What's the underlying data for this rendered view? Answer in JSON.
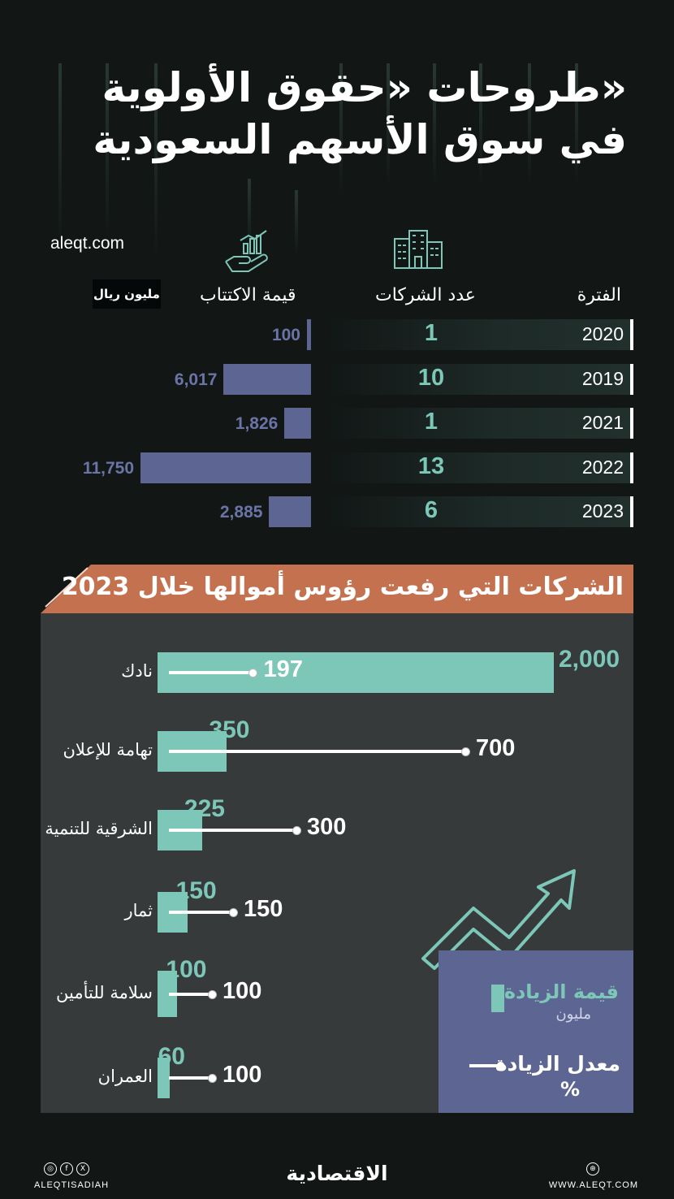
{
  "title": {
    "line1": "طروحات «حقوق الأولوية»",
    "line2": "في سوق الأسهم السعودية"
  },
  "site": "aleqt.com",
  "headers": {
    "period": "الفترة",
    "companies": "عدد الشركات",
    "value": "قيمة الاكتتاب",
    "unit": "مليون ريال"
  },
  "banner_title": "الشركات التي رفعت رؤوس أموالها خلال 2023",
  "legend": {
    "increase_value": "قيمة الزيادة",
    "increase_value_unit": "مليون",
    "increase_rate": "معدل الزيادة",
    "increase_rate_unit": "%"
  },
  "footer": {
    "handle": "ALEQTISADIAH",
    "brand": "الاقتصادية",
    "website": "WWW.ALEQT.COM"
  },
  "icons": [
    "hand-growth-icon",
    "buildings-icon",
    "trend-arrow-icon",
    "instagram-icon",
    "facebook-icon",
    "x-icon",
    "globe-icon"
  ],
  "colors": {
    "background": "#121716",
    "teal": "#7dc7b9",
    "purple": "#5d6592",
    "orange": "#c4714f",
    "panel": "#373a3b"
  },
  "chart_data": [
    {
      "type": "table",
      "columns": [
        "الفترة",
        "عدد الشركات",
        "قيمة الاكتتاب"
      ],
      "unit": "مليون ريال",
      "rows": [
        {
          "year": "2020",
          "companies": "1",
          "value": 100,
          "value_label": "100"
        },
        {
          "year": "2019",
          "companies": "10",
          "value": 6017,
          "value_label": "6,017"
        },
        {
          "year": "2021",
          "companies": "1",
          "value": 1826,
          "value_label": "1,826"
        },
        {
          "year": "2022",
          "companies": "13",
          "value": 11750,
          "value_label": "11,750"
        },
        {
          "year": "2023",
          "companies": "6",
          "value": 2885,
          "value_label": "2,885"
        }
      ]
    },
    {
      "type": "bar",
      "title": "الشركات التي رفعت رؤوس أموالها خلال 2023",
      "categories": [
        "نادك",
        "تهامة للإعلان",
        "الشرقية للتنمية",
        "ثمار",
        "سلامة للتأمين",
        "العمران"
      ],
      "series": [
        {
          "name": "قيمة الزيادة",
          "values": [
            2000,
            350,
            225,
            150,
            100,
            60
          ],
          "labels": [
            "2,000",
            "350",
            "225",
            "150",
            "100",
            "60"
          ]
        },
        {
          "name": "معدل الزيادة",
          "values": [
            197,
            700,
            300,
            150,
            100,
            100
          ],
          "labels": [
            "197",
            "700",
            "300",
            "150",
            "100",
            "100"
          ]
        }
      ]
    }
  ]
}
